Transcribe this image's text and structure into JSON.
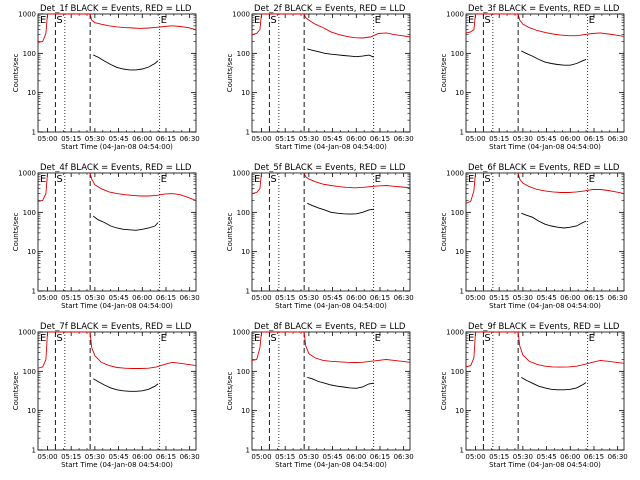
{
  "common": {
    "title_suffix": "BLACK = Events, RED = LLD",
    "xlabel": "Start Time (04-Jan-08 04:54:00)",
    "ylabel": "Counts/sec",
    "x_ticks": [
      "05:00",
      "05:15",
      "05:30",
      "05:45",
      "06:00",
      "06:15",
      "06:30"
    ],
    "y_ticks": [
      "1",
      "10",
      "100",
      "1000"
    ],
    "markers": {
      "E": "E",
      "S": "S"
    }
  },
  "colors": {
    "events": "#000000",
    "lld": "#e00000",
    "axis": "#000000"
  },
  "chart_data": [
    {
      "type": "line",
      "title": "Det_1f BLACK = Events, RED = LLD",
      "xlabel": "Start Time (04-Jan-08 04:54:00)",
      "ylabel": "Counts/sec",
      "x_unit": "minutes since 04:54:00",
      "xlim": [
        0,
        100
      ],
      "ylim": [
        1,
        1000
      ],
      "yscale": "log",
      "vlines": {
        "dashed": [
          11,
          33
        ],
        "dotted": [
          17,
          77
        ]
      },
      "series": [
        {
          "name": "Events",
          "color": "#000000",
          "x": [
            35,
            38,
            42,
            46,
            50,
            54,
            58,
            62,
            66,
            70,
            74,
            76
          ],
          "y": [
            90,
            80,
            64,
            52,
            44,
            40,
            38,
            38,
            40,
            45,
            55,
            65
          ]
        },
        {
          "name": "LLD",
          "color": "#e00000",
          "x": [
            0,
            3,
            5,
            6,
            7,
            9,
            10,
            11,
            33,
            34,
            36,
            40,
            45,
            50,
            55,
            60,
            65,
            70,
            75,
            80,
            85,
            90,
            95,
            100
          ],
          "y": [
            190,
            200,
            320,
            1000,
            1000,
            1000,
            1000,
            1000,
            1000,
            700,
            600,
            550,
            500,
            470,
            450,
            440,
            430,
            440,
            460,
            480,
            500,
            480,
            450,
            400
          ]
        }
      ]
    },
    {
      "type": "line",
      "title": "Det_2f BLACK = Events, RED = LLD",
      "xlabel": "Start Time (04-Jan-08 04:54:00)",
      "ylabel": "Counts/sec",
      "x_unit": "minutes since 04:54:00",
      "xlim": [
        0,
        100
      ],
      "ylim": [
        1,
        1000
      ],
      "yscale": "log",
      "vlines": {
        "dashed": [
          11,
          33
        ],
        "dotted": [
          17,
          77
        ]
      },
      "series": [
        {
          "name": "Events",
          "color": "#000000",
          "x": [
            35,
            38,
            42,
            46,
            50,
            54,
            58,
            62,
            66,
            70,
            74,
            77
          ],
          "y": [
            130,
            120,
            110,
            100,
            95,
            92,
            88,
            85,
            82,
            85,
            90,
            80
          ]
        },
        {
          "name": "LLD",
          "color": "#e00000",
          "x": [
            0,
            3,
            5,
            6,
            7,
            9,
            10,
            11,
            33,
            34,
            36,
            40,
            45,
            50,
            55,
            60,
            65,
            70,
            75,
            80,
            85,
            90,
            95,
            100
          ],
          "y": [
            300,
            320,
            400,
            1000,
            1000,
            1000,
            1000,
            1000,
            1000,
            800,
            700,
            550,
            450,
            350,
            300,
            270,
            250,
            245,
            260,
            320,
            330,
            300,
            280,
            260
          ]
        }
      ]
    },
    {
      "type": "line",
      "title": "Det_3f BLACK = Events, RED = LLD",
      "xlabel": "Start Time (04-Jan-08 04:54:00)",
      "ylabel": "Counts/sec",
      "x_unit": "minutes since 04:54:00",
      "xlim": [
        0,
        100
      ],
      "ylim": [
        1,
        1000
      ],
      "yscale": "log",
      "vlines": {
        "dashed": [
          11,
          33
        ],
        "dotted": [
          17,
          77
        ]
      },
      "series": [
        {
          "name": "Events",
          "color": "#000000",
          "x": [
            35,
            38,
            42,
            46,
            50,
            54,
            58,
            62,
            66,
            70,
            74,
            76
          ],
          "y": [
            115,
            100,
            85,
            70,
            60,
            55,
            52,
            50,
            50,
            55,
            65,
            70
          ]
        },
        {
          "name": "LLD",
          "color": "#e00000",
          "x": [
            0,
            3,
            5,
            6,
            7,
            9,
            10,
            11,
            33,
            34,
            36,
            40,
            45,
            50,
            55,
            60,
            65,
            70,
            75,
            80,
            85,
            90,
            95,
            100
          ],
          "y": [
            330,
            350,
            400,
            1000,
            1000,
            1000,
            1000,
            1000,
            1000,
            700,
            550,
            450,
            380,
            340,
            310,
            290,
            280,
            280,
            300,
            320,
            330,
            310,
            290,
            270
          ]
        }
      ]
    },
    {
      "type": "line",
      "title": "Det_4f BLACK = Events, RED = LLD",
      "xlabel": "Start Time (04-Jan-08 04:54:00)",
      "ylabel": "Counts/sec",
      "x_unit": "minutes since 04:54:00",
      "xlim": [
        0,
        100
      ],
      "ylim": [
        1,
        1000
      ],
      "yscale": "log",
      "vlines": {
        "dashed": [
          11,
          33
        ],
        "dotted": [
          17,
          77
        ]
      },
      "series": [
        {
          "name": "Events",
          "color": "#000000",
          "x": [
            35,
            38,
            42,
            46,
            50,
            54,
            58,
            62,
            66,
            70,
            74,
            76
          ],
          "y": [
            80,
            65,
            55,
            45,
            40,
            37,
            36,
            35,
            37,
            40,
            45,
            55
          ]
        },
        {
          "name": "LLD",
          "color": "#e00000",
          "x": [
            0,
            3,
            5,
            6,
            7,
            9,
            10,
            11,
            33,
            34,
            36,
            40,
            45,
            50,
            55,
            60,
            65,
            70,
            75,
            80,
            85,
            90,
            95,
            100
          ],
          "y": [
            190,
            200,
            300,
            1000,
            1000,
            1000,
            1000,
            1000,
            1000,
            700,
            500,
            400,
            330,
            300,
            280,
            270,
            260,
            260,
            270,
            290,
            300,
            280,
            240,
            200
          ]
        }
      ]
    },
    {
      "type": "line",
      "title": "Det_5f BLACK = Events, RED = LLD",
      "xlabel": "Start Time (04-Jan-08 04:54:00)",
      "ylabel": "Counts/sec",
      "x_unit": "minutes since 04:54:00",
      "xlim": [
        0,
        100
      ],
      "ylim": [
        1,
        1000
      ],
      "yscale": "log",
      "vlines": {
        "dashed": [
          11,
          33
        ],
        "dotted": [
          17,
          77
        ]
      },
      "series": [
        {
          "name": "Events",
          "color": "#000000",
          "x": [
            35,
            38,
            42,
            46,
            50,
            54,
            58,
            62,
            66,
            70,
            74,
            77
          ],
          "y": [
            170,
            150,
            130,
            115,
            100,
            95,
            92,
            90,
            92,
            100,
            115,
            120
          ]
        },
        {
          "name": "LLD",
          "color": "#e00000",
          "x": [
            0,
            3,
            5,
            6,
            7,
            9,
            10,
            11,
            33,
            34,
            36,
            40,
            45,
            50,
            55,
            60,
            65,
            70,
            75,
            80,
            85,
            90,
            95,
            100
          ],
          "y": [
            300,
            320,
            400,
            1000,
            1000,
            1000,
            1000,
            1000,
            1000,
            800,
            700,
            600,
            520,
            480,
            450,
            430,
            420,
            430,
            450,
            470,
            480,
            460,
            440,
            420
          ]
        }
      ]
    },
    {
      "type": "line",
      "title": "Det_6f BLACK = Events, RED = LLD",
      "xlabel": "Start Time (04-Jan-08 04:54:00)",
      "ylabel": "Counts/sec",
      "x_unit": "minutes since 04:54:00",
      "xlim": [
        0,
        100
      ],
      "ylim": [
        1,
        1000
      ],
      "yscale": "log",
      "vlines": {
        "dashed": [
          11,
          33
        ],
        "dotted": [
          17,
          77
        ]
      },
      "series": [
        {
          "name": "Events",
          "color": "#000000",
          "x": [
            35,
            38,
            42,
            46,
            50,
            54,
            58,
            62,
            66,
            70,
            74,
            76
          ],
          "y": [
            95,
            85,
            75,
            60,
            50,
            45,
            42,
            40,
            42,
            45,
            55,
            60
          ]
        },
        {
          "name": "LLD",
          "color": "#e00000",
          "x": [
            0,
            3,
            5,
            6,
            7,
            9,
            10,
            11,
            33,
            34,
            36,
            40,
            45,
            50,
            55,
            60,
            65,
            70,
            75,
            80,
            85,
            90,
            95,
            100
          ],
          "y": [
            170,
            190,
            350,
            1000,
            1000,
            1000,
            1000,
            1000,
            1000,
            700,
            550,
            450,
            380,
            350,
            330,
            320,
            320,
            330,
            350,
            380,
            380,
            360,
            330,
            300
          ]
        }
      ]
    },
    {
      "type": "line",
      "title": "Det_7f BLACK = Events, RED = LLD",
      "xlabel": "Start Time (04-Jan-08 04:54:00)",
      "ylabel": "Counts/sec",
      "x_unit": "minutes since 04:54:00",
      "xlim": [
        0,
        100
      ],
      "ylim": [
        1,
        1000
      ],
      "yscale": "log",
      "vlines": {
        "dashed": [
          11,
          33
        ],
        "dotted": [
          17,
          77
        ]
      },
      "series": [
        {
          "name": "Events",
          "color": "#000000",
          "x": [
            35,
            38,
            42,
            46,
            50,
            54,
            58,
            62,
            66,
            70,
            74,
            76
          ],
          "y": [
            65,
            55,
            45,
            38,
            34,
            32,
            31,
            31,
            32,
            35,
            42,
            48
          ]
        },
        {
          "name": "LLD",
          "color": "#e00000",
          "x": [
            0,
            3,
            5,
            6,
            7,
            9,
            10,
            11,
            33,
            34,
            36,
            40,
            45,
            50,
            55,
            60,
            65,
            70,
            75,
            80,
            85,
            90,
            95,
            100
          ],
          "y": [
            120,
            130,
            200,
            1000,
            1000,
            1000,
            1000,
            1000,
            1000,
            400,
            250,
            170,
            140,
            125,
            120,
            118,
            118,
            120,
            130,
            150,
            170,
            160,
            150,
            140
          ]
        }
      ]
    },
    {
      "type": "line",
      "title": "Det_8f BLACK = Events, RED = LLD",
      "xlabel": "Start Time (04-Jan-08 04:54:00)",
      "ylabel": "Counts/sec",
      "x_unit": "minutes since 04:54:00",
      "xlim": [
        0,
        100
      ],
      "ylim": [
        1,
        1000
      ],
      "yscale": "log",
      "vlines": {
        "dashed": [
          11,
          33
        ],
        "dotted": [
          17,
          77
        ]
      },
      "series": [
        {
          "name": "Events",
          "color": "#000000",
          "x": [
            35,
            38,
            42,
            46,
            50,
            54,
            58,
            62,
            66,
            70,
            74,
            77
          ],
          "y": [
            70,
            65,
            55,
            50,
            45,
            42,
            40,
            38,
            37,
            40,
            48,
            50
          ]
        },
        {
          "name": "LLD",
          "color": "#e00000",
          "x": [
            0,
            3,
            5,
            6,
            7,
            9,
            10,
            11,
            33,
            34,
            36,
            40,
            45,
            50,
            55,
            60,
            65,
            70,
            75,
            80,
            85,
            90,
            95,
            100
          ],
          "y": [
            190,
            200,
            400,
            1000,
            1000,
            1000,
            1000,
            1000,
            1000,
            450,
            280,
            220,
            190,
            180,
            175,
            170,
            168,
            170,
            180,
            190,
            200,
            190,
            180,
            170
          ]
        }
      ]
    },
    {
      "type": "line",
      "title": "Det_9f BLACK = Events, RED = LLD",
      "xlabel": "Start Time (04-Jan-08 04:54:00)",
      "ylabel": "Counts/sec",
      "x_unit": "minutes since 04:54:00",
      "xlim": [
        0,
        100
      ],
      "ylim": [
        1,
        1000
      ],
      "yscale": "log",
      "vlines": {
        "dashed": [
          11,
          33
        ],
        "dotted": [
          17,
          77
        ]
      },
      "series": [
        {
          "name": "Events",
          "color": "#000000",
          "x": [
            35,
            38,
            42,
            46,
            50,
            54,
            58,
            62,
            66,
            70,
            74,
            76
          ],
          "y": [
            70,
            60,
            50,
            42,
            38,
            35,
            34,
            34,
            35,
            38,
            46,
            52
          ]
        },
        {
          "name": "LLD",
          "color": "#e00000",
          "x": [
            0,
            3,
            5,
            6,
            7,
            9,
            10,
            11,
            33,
            34,
            36,
            40,
            45,
            50,
            55,
            60,
            65,
            70,
            75,
            80,
            85,
            90,
            95,
            100
          ],
          "y": [
            130,
            140,
            220,
            1000,
            1000,
            1000,
            1000,
            1000,
            1000,
            450,
            260,
            180,
            150,
            135,
            130,
            128,
            130,
            135,
            150,
            170,
            190,
            180,
            170,
            160
          ]
        }
      ]
    }
  ]
}
